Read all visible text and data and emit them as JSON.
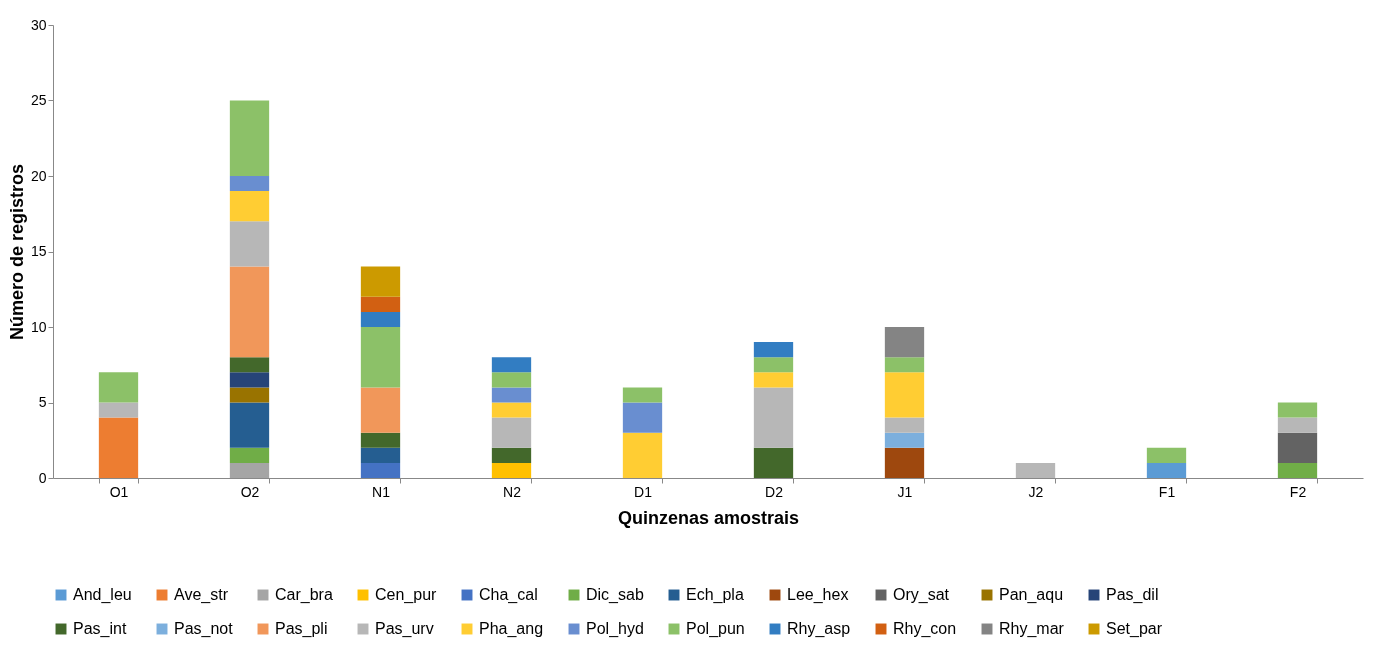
{
  "chart_data": {
    "type": "bar",
    "stacked": true,
    "xlabel": "Quinzenas amostrais",
    "ylabel": "Número de registros",
    "categories": [
      "O1",
      "O2",
      "N1",
      "N2",
      "D1",
      "D2",
      "J1",
      "J2",
      "F1",
      "F2"
    ],
    "ylim": [
      0,
      30
    ],
    "yticks": [
      0,
      5,
      10,
      15,
      20,
      25,
      30
    ],
    "legend": "bottom",
    "series": [
      {
        "name": "And_leu",
        "color": "#5b9bd5",
        "values": [
          null,
          null,
          null,
          null,
          null,
          null,
          null,
          null,
          1,
          null
        ]
      },
      {
        "name": "Ave_str",
        "color": "#ed7d31",
        "values": [
          4,
          null,
          null,
          null,
          null,
          null,
          null,
          null,
          null,
          null
        ]
      },
      {
        "name": "Car_bra",
        "color": "#a5a5a5",
        "values": [
          null,
          1,
          null,
          null,
          null,
          null,
          null,
          null,
          null,
          null
        ]
      },
      {
        "name": "Cen_pur",
        "color": "#ffc000",
        "values": [
          null,
          null,
          null,
          1,
          null,
          null,
          null,
          null,
          null,
          null
        ]
      },
      {
        "name": "Cha_cal",
        "color": "#4472c4",
        "values": [
          null,
          null,
          1,
          null,
          null,
          null,
          null,
          null,
          null,
          null
        ]
      },
      {
        "name": "Dic_sab",
        "color": "#70ad47",
        "values": [
          null,
          1,
          null,
          null,
          null,
          null,
          null,
          null,
          null,
          1
        ]
      },
      {
        "name": "Ech_pla",
        "color": "#255e91",
        "values": [
          null,
          3,
          1,
          null,
          null,
          null,
          null,
          null,
          null,
          null
        ]
      },
      {
        "name": "Lee_hex",
        "color": "#9e480e",
        "values": [
          null,
          null,
          null,
          null,
          null,
          null,
          2,
          null,
          null,
          null
        ]
      },
      {
        "name": "Ory_sat",
        "color": "#636363",
        "values": [
          null,
          null,
          null,
          null,
          null,
          null,
          null,
          null,
          null,
          2
        ]
      },
      {
        "name": "Pan_aqu",
        "color": "#997300",
        "values": [
          null,
          1,
          null,
          null,
          null,
          null,
          null,
          null,
          null,
          null
        ]
      },
      {
        "name": "Pas_dil",
        "color": "#264478",
        "values": [
          null,
          1,
          null,
          null,
          null,
          null,
          null,
          null,
          null,
          null
        ]
      },
      {
        "name": "Pas_int",
        "color": "#43682b",
        "values": [
          null,
          1,
          1,
          1,
          null,
          2,
          null,
          null,
          null,
          null
        ]
      },
      {
        "name": "Pas_not",
        "color": "#7cafdd",
        "values": [
          null,
          null,
          null,
          null,
          null,
          null,
          1,
          null,
          null,
          null
        ]
      },
      {
        "name": "Pas_pli",
        "color": "#f1975a",
        "values": [
          null,
          6,
          3,
          null,
          null,
          null,
          null,
          null,
          null,
          null
        ]
      },
      {
        "name": "Pas_urv",
        "color": "#b7b7b7",
        "values": [
          1,
          3,
          null,
          2,
          null,
          4,
          1,
          1,
          null,
          1
        ]
      },
      {
        "name": "Pha_ang",
        "color": "#ffcd33",
        "values": [
          null,
          2,
          null,
          1,
          3,
          1,
          3,
          null,
          null,
          null
        ]
      },
      {
        "name": "Pol_hyd",
        "color": "#698ed0",
        "values": [
          null,
          1,
          null,
          1,
          2,
          null,
          null,
          null,
          null,
          null
        ]
      },
      {
        "name": "Pol_pun",
        "color": "#8cc168",
        "values": [
          2,
          5,
          4,
          1,
          1,
          1,
          1,
          null,
          1,
          1
        ]
      },
      {
        "name": "Rhy_asp",
        "color": "#327dc2",
        "values": [
          null,
          null,
          1,
          1,
          null,
          1,
          null,
          null,
          null,
          null
        ]
      },
      {
        "name": "Rhy_con",
        "color": "#d26012",
        "values": [
          null,
          null,
          1,
          null,
          null,
          null,
          null,
          null,
          null,
          null
        ]
      },
      {
        "name": "Rhy_mar",
        "color": "#848484",
        "values": [
          null,
          null,
          null,
          null,
          null,
          null,
          2,
          null,
          null,
          null
        ]
      },
      {
        "name": "Set_par",
        "color": "#cc9a00",
        "values": [
          null,
          null,
          2,
          null,
          null,
          null,
          null,
          null,
          null,
          null
        ]
      }
    ]
  }
}
